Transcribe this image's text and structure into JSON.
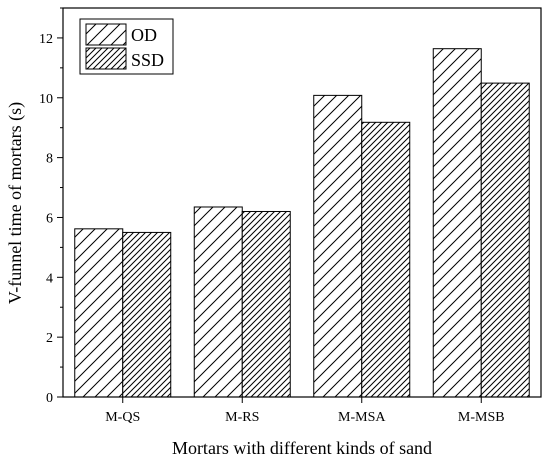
{
  "chart_data": {
    "type": "bar",
    "xlabel": "Mortars with different kinds of sand",
    "ylabel": "V-funnel time of mortars (s)",
    "categories": [
      "M-QS",
      "M-RS",
      "M-MSA",
      "M-MSB"
    ],
    "series": [
      {
        "name": "OD",
        "values": [
          5.62,
          6.35,
          10.08,
          11.64
        ],
        "pattern": "diagonal-hatch-sparse"
      },
      {
        "name": "SSD",
        "values": [
          5.5,
          6.2,
          9.18,
          10.49
        ],
        "pattern": "diagonal-hatch-dense"
      }
    ],
    "ylim": [
      0,
      13
    ],
    "yticks": [
      0,
      2,
      4,
      6,
      8,
      10,
      12
    ],
    "grid": false,
    "legend": "top-left",
    "colors": {
      "stroke": "#000000",
      "fill": "#ffffff"
    }
  }
}
